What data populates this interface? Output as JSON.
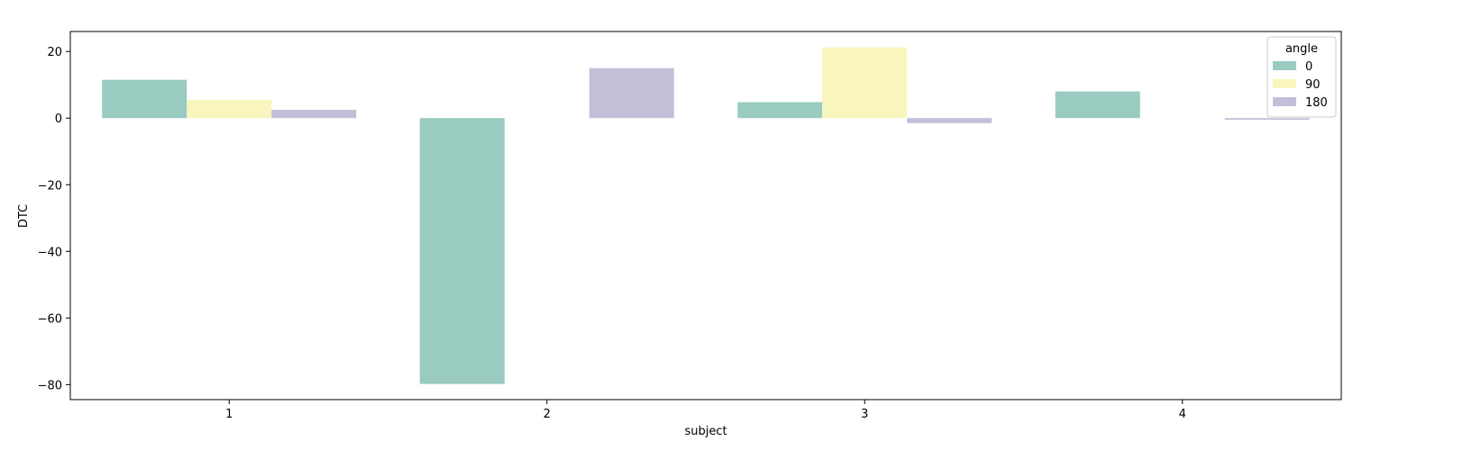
{
  "chart_data": {
    "type": "bar",
    "xlabel": "subject",
    "ylabel": "DTC",
    "categories": [
      "1",
      "2",
      "3",
      "4"
    ],
    "series": [
      {
        "name": "0",
        "color": "#99cbc1",
        "values": [
          11.5,
          -79.8,
          4.8,
          8.0
        ]
      },
      {
        "name": "90",
        "color": "#f8f6bc",
        "values": [
          5.5,
          0.0,
          21.2,
          0.0
        ]
      },
      {
        "name": "180",
        "color": "#c2bfd8",
        "values": [
          2.5,
          15.0,
          -1.5,
          -0.5
        ]
      }
    ],
    "ylim": [
      -84.5,
      26.0
    ],
    "yticks": [
      20,
      0,
      -20,
      -40,
      -60,
      -80
    ],
    "ytick_labels": [
      "20",
      "0",
      "−20",
      "−40",
      "−60",
      "−80"
    ],
    "legend": {
      "title": "angle",
      "placement": "top-right"
    },
    "grid": false
  }
}
